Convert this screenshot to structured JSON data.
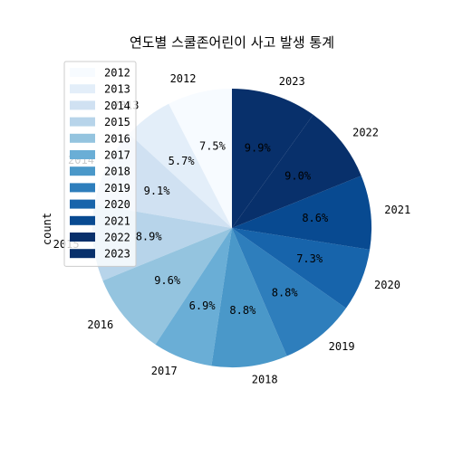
{
  "chart_data": {
    "type": "pie",
    "title": "연도별 스쿨존어린이 사고 발생 통계",
    "ylabel": "count",
    "legend_position": "upper-left",
    "start_angle_deg": 90,
    "direction": "counterclockwise",
    "categories": [
      "2012",
      "2013",
      "2014",
      "2015",
      "2016",
      "2017",
      "2018",
      "2019",
      "2020",
      "2021",
      "2022",
      "2023"
    ],
    "values": [
      7.5,
      5.7,
      9.1,
      8.9,
      9.6,
      6.9,
      8.8,
      8.8,
      7.3,
      8.6,
      9.0,
      9.9
    ],
    "percent_labels": [
      "7.5%",
      "5.7%",
      "9.1%",
      "8.9%",
      "9.6%",
      "6.9%",
      "8.8%",
      "8.8%",
      "7.3%",
      "8.6%",
      "9.0%",
      "9.9%"
    ],
    "colors": [
      "#f7fbff",
      "#e3eef9",
      "#d0e1f2",
      "#b7d4ea",
      "#94c4df",
      "#6aaed6",
      "#4a98c9",
      "#2e7ebc",
      "#1764ab",
      "#084a91",
      "#08306b",
      "#08306b"
    ]
  }
}
